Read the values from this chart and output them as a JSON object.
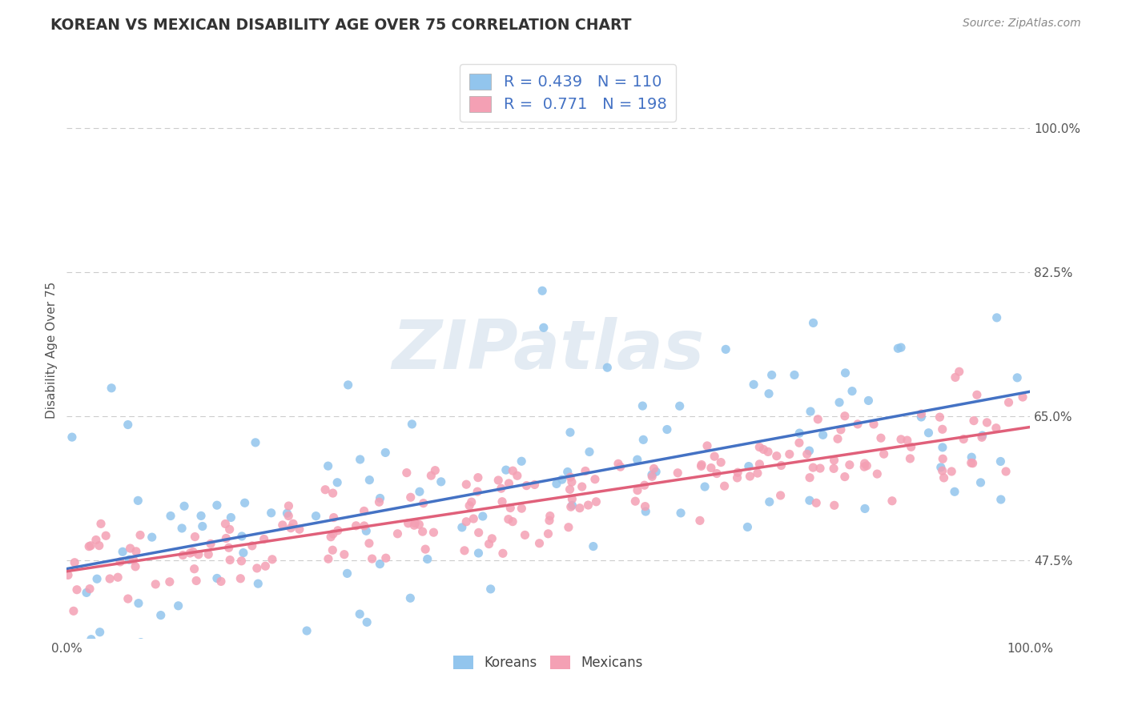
{
  "title": "KOREAN VS MEXICAN DISABILITY AGE OVER 75 CORRELATION CHART",
  "source_text": "Source: ZipAtlas.com",
  "ylabel": "Disability Age Over 75",
  "x_min": 0.0,
  "x_max": 1.0,
  "y_min": 0.38,
  "y_max": 1.08,
  "y_ticks": [
    0.475,
    0.65,
    0.825,
    1.0
  ],
  "y_tick_labels": [
    "47.5%",
    "65.0%",
    "82.5%",
    "100.0%"
  ],
  "x_tick_labels": [
    "0.0%",
    "100.0%"
  ],
  "korean_color": "#92C5ED",
  "mexican_color": "#F4A0B4",
  "korean_line_color": "#4472C4",
  "mexican_line_color": "#E0607A",
  "korean_R": 0.439,
  "korean_N": 110,
  "mexican_R": 0.771,
  "mexican_N": 198,
  "korean_intercept": 0.465,
  "korean_slope": 0.215,
  "mexican_intercept": 0.462,
  "mexican_slope": 0.175,
  "korean_noise_std": 0.085,
  "mexican_noise_std": 0.028,
  "watermark": "ZIPatlas",
  "background_color": "#FFFFFF",
  "grid_color": "#CCCCCC",
  "title_color": "#333333",
  "legend_text_color": "#4472C4",
  "seed_korean": 42,
  "seed_mexican": 7
}
